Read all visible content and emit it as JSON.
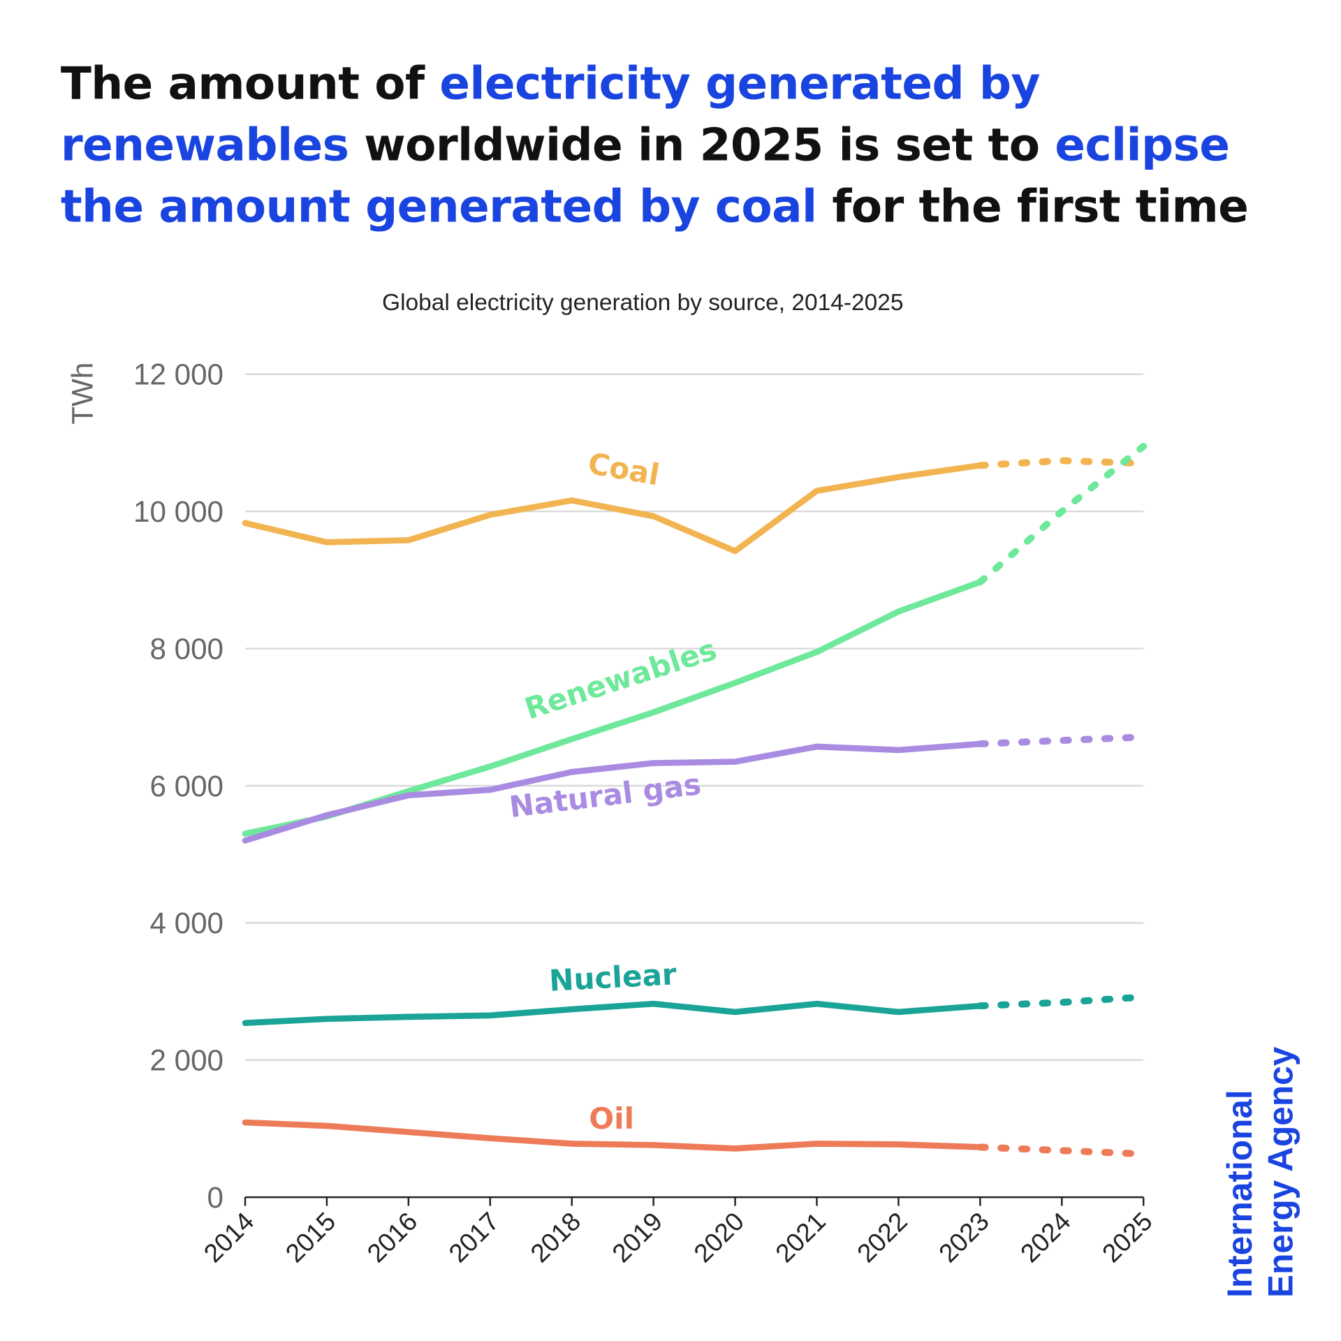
{
  "title_segments": [
    {
      "text": "The amount of ",
      "highlight": false
    },
    {
      "text": "electricity generated by renewables",
      "highlight": true
    },
    {
      "text": " worldwide in 2025 is set to ",
      "highlight": false
    },
    {
      "text": "eclipse the amount generated by coal",
      "highlight": true
    },
    {
      "text": " for the first time",
      "highlight": false
    }
  ],
  "colors": {
    "title": "#111111",
    "highlight": "#1A44E0",
    "grid": "#D9D9D9"
  },
  "logo": {
    "line1": "International",
    "line2": "Energy Agency"
  },
  "chart_data": {
    "type": "line",
    "title": "Global electricity generation by source, 2014-2025",
    "xlabel": "",
    "ylabel": "TWh",
    "x": [
      2014,
      2015,
      2016,
      2017,
      2018,
      2019,
      2020,
      2021,
      2022,
      2023,
      2024,
      2025
    ],
    "x_tick_labels": [
      "2014",
      "2015",
      "2016",
      "2017",
      "2018",
      "2019",
      "2020",
      "2021",
      "2022",
      "2023",
      "2024",
      "2025"
    ],
    "ylim": [
      0,
      12000
    ],
    "y_ticks": [
      0,
      2000,
      4000,
      6000,
      8000,
      10000,
      12000
    ],
    "y_tick_labels": [
      "0",
      "2 000",
      "4 000",
      "6 000",
      "8 000",
      "10 000",
      "12 000"
    ],
    "grid": "horizontal",
    "legend": "inline labels",
    "forecast_from": 2023,
    "forecast_style": "dotted",
    "series": [
      {
        "name": "Coal",
        "color": "#F2B450",
        "values": [
          9830,
          9550,
          9580,
          9950,
          10160,
          9930,
          9420,
          10300,
          10500,
          10670,
          10740,
          10700
        ]
      },
      {
        "name": "Renewables",
        "color": "#6EE89A",
        "values": [
          5300,
          5550,
          5920,
          6280,
          6680,
          7070,
          7500,
          7950,
          8540,
          8970,
          10000,
          10950
        ]
      },
      {
        "name": "Natural gas",
        "color": "#A98BE2",
        "values": [
          5200,
          5570,
          5860,
          5940,
          6200,
          6330,
          6350,
          6570,
          6520,
          6610,
          6660,
          6710
        ]
      },
      {
        "name": "Nuclear",
        "color": "#1AA397",
        "values": [
          2540,
          2600,
          2630,
          2650,
          2740,
          2820,
          2700,
          2820,
          2700,
          2790,
          2840,
          2920
        ]
      },
      {
        "name": "Oil",
        "color": "#EE7B57",
        "values": [
          1090,
          1040,
          950,
          860,
          780,
          760,
          710,
          780,
          770,
          730,
          680,
          630
        ]
      }
    ]
  }
}
